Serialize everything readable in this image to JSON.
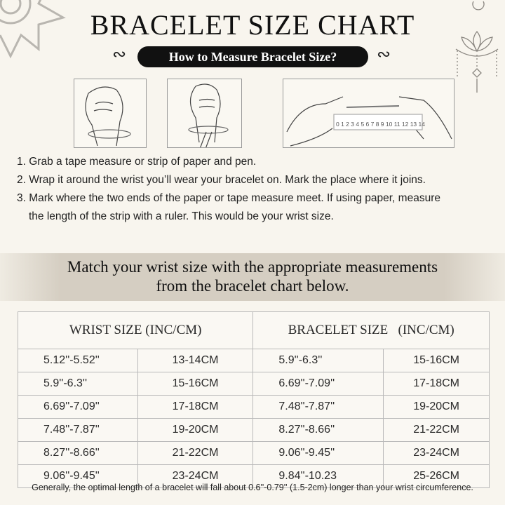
{
  "title": "BRACELET SIZE CHART",
  "subtitle": "How to Measure Bracelet Size?",
  "ruler_numbers": "0 1 2 3 4 5 6 7 8 9 10 11 12 13 14",
  "steps": [
    "1. Grab a tape measure or strip of paper and pen.",
    "2. Wrap it around the wrist you’ll wear your bracelet on. Mark the place where it joins.",
    "3. Mark where the two ends of the paper or tape measure meet. If using paper, measure",
    "the length of the strip with a ruler. This would be your wrist size."
  ],
  "match_line1": "Match your wrist size with the appropriate measurements",
  "match_line2": "from the bracelet chart below.",
  "table": {
    "headers": [
      "WRIST SIZE (INC/CM)",
      "BRACELET SIZE   (INC/CM)"
    ],
    "rows": [
      [
        "5.12''-5.52''",
        "13-14CM",
        "5.9''-6.3''",
        "15-16CM"
      ],
      [
        "5.9''-6.3''",
        "15-16CM",
        "6.69''-7.09''",
        "17-18CM"
      ],
      [
        "6.69''-7.09''",
        "17-18CM",
        "7.48''-7.87''",
        "19-20CM"
      ],
      [
        "7.48''-7.87''",
        "19-20CM",
        "8.27''-8.66''",
        "21-22CM"
      ],
      [
        "8.27''-8.66''",
        "21-22CM",
        "9.06''-9.45''",
        "23-24CM"
      ],
      [
        "9.06''-9.45''",
        "23-24CM",
        "9.84''-10.23",
        "25-26CM"
      ]
    ]
  },
  "note": "Generally, the optimal length of a bracelet will fall about 0.6''-0.79'' (1.5-2cm) longer than your wrist circumference."
}
